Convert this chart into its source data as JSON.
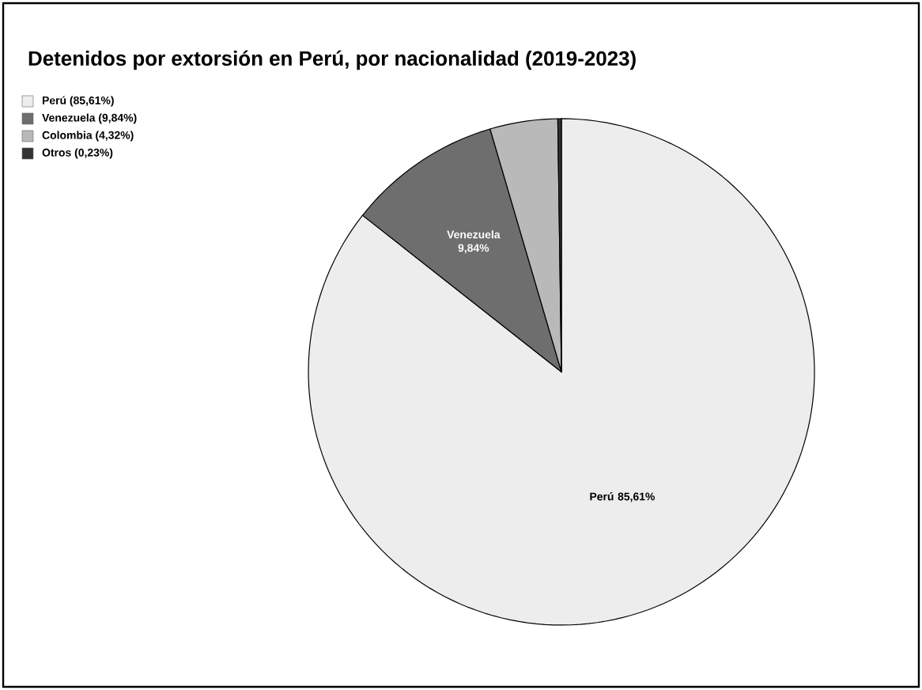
{
  "chart_data": {
    "type": "pie",
    "title": "Detenidos por extorsión en Perú, por nacionalidad (2019-2023)",
    "categories": [
      "Perú (85,61%)",
      "Venezuela (9,84%)",
      "Colombia (4,32%)",
      "Otros (0,23%)"
    ],
    "values": [
      85.61,
      9.84,
      4.32,
      0.23
    ],
    "colors": [
      "#ededed",
      "#6e6e6e",
      "#b9b9b9",
      "#333333"
    ],
    "value_labels": [
      "Perú 85,61%",
      "Venezuela 9,84%",
      null,
      null
    ],
    "legend": "top left"
  }
}
